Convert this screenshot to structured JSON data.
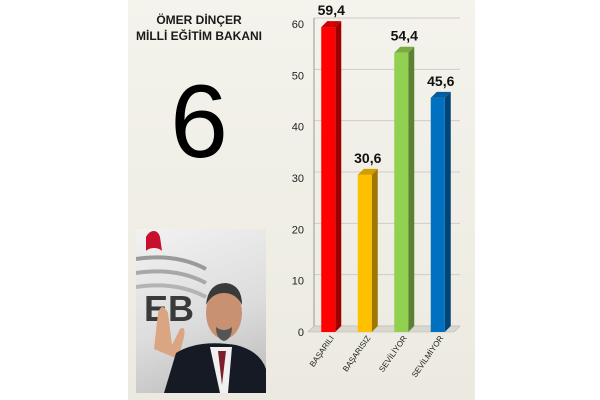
{
  "header": {
    "name": "ÖMER DİNÇER",
    "position": "MİLLİ EĞİTİM BAKANI"
  },
  "rank": "6",
  "photo": {
    "logo_text": "EB"
  },
  "colors": {
    "basarili": "#ff0000",
    "basarisiz": "#ffc000",
    "seviliyor": "#92d050",
    "sevilmiyor": "#0070c0"
  },
  "chart_data": {
    "type": "bar",
    "categories": [
      "BAŞARILI",
      "BAŞARISIZ",
      "SEVİLİYOR",
      "SEVİLMİYOR"
    ],
    "values": [
      59.4,
      30.6,
      54.4,
      45.6
    ],
    "value_labels": [
      "59,4",
      "30,6",
      "54,4",
      "45,6"
    ],
    "title": "",
    "xlabel": "",
    "ylabel": "",
    "ylim": [
      0,
      60
    ],
    "yticks": [
      0,
      10,
      20,
      30,
      40,
      50,
      60
    ],
    "grid": true,
    "legend": "none",
    "style": "3d"
  }
}
